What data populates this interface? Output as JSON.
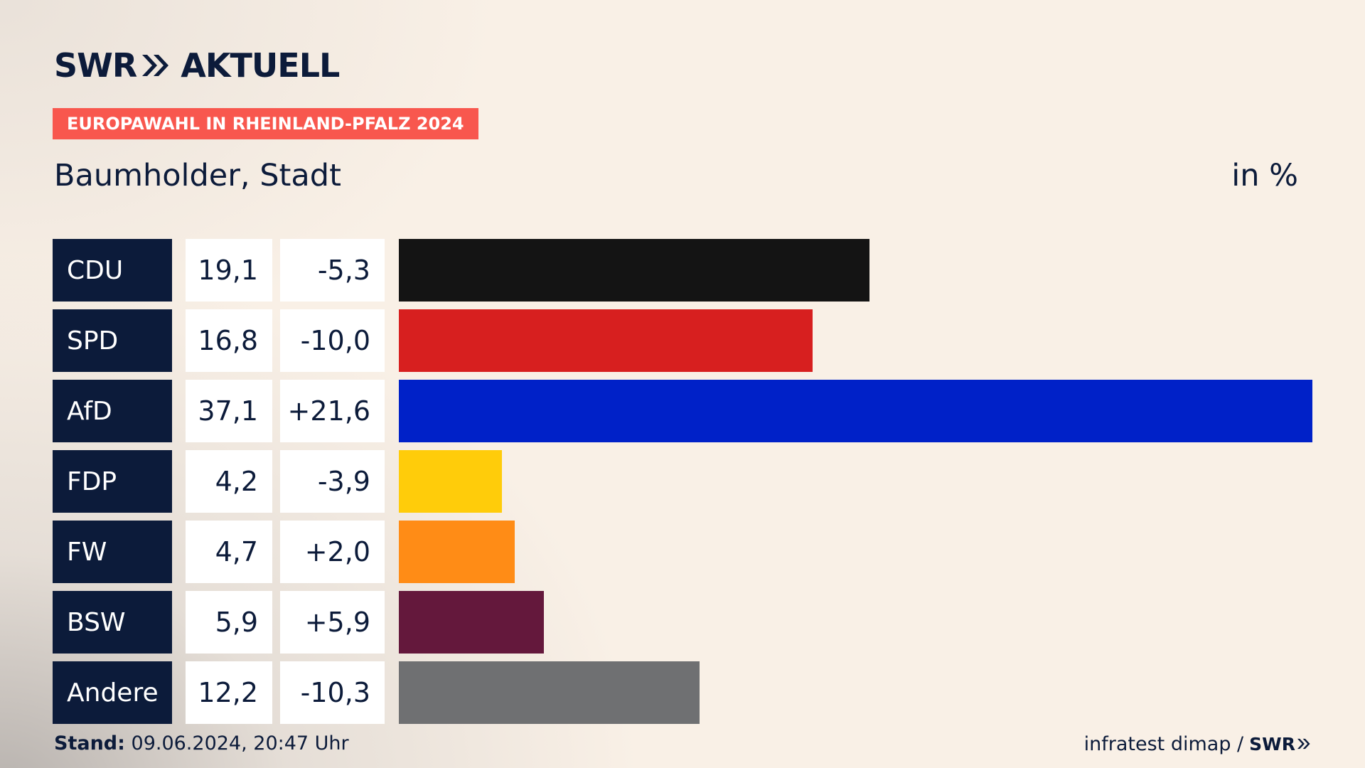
{
  "header": {
    "logo_swr": "SWR",
    "logo_aktuell": "AKTUELL",
    "tag": "EUROPAWAHL IN RHEINLAND-PFALZ 2024",
    "place": "Baumholder, Stadt",
    "unit": "in %"
  },
  "footer": {
    "stand_label": "Stand:",
    "stand_value": "09.06.2024, 20:47 Uhr",
    "source": "infratest dimap /",
    "source_logo": "SWR"
  },
  "colors": {
    "navy": "#0c1b3a",
    "tag_red": "#f8574e"
  },
  "chart_data": {
    "type": "bar",
    "title": "Baumholder, Stadt",
    "unit": "in %",
    "categories": [
      "CDU",
      "SPD",
      "AfD",
      "FDP",
      "FW",
      "BSW",
      "Andere"
    ],
    "series": [
      {
        "values": [
          19.1,
          16.8,
          37.1,
          4.2,
          4.7,
          5.9,
          12.2
        ]
      }
    ],
    "value_labels": [
      "19,1",
      "16,8",
      "37,1",
      "4,2",
      "4,7",
      "5,9",
      "12,2"
    ],
    "diff_labels": [
      "-5,3",
      "-10,0",
      "+21,6",
      "-3,9",
      "+2,0",
      "+5,9",
      "-10,3"
    ],
    "diffs": [
      -5.3,
      -10.0,
      21.6,
      -3.9,
      2.0,
      5.9,
      -10.3
    ],
    "bar_colors": [
      "#141414",
      "#d71f1f",
      "#0021c8",
      "#ffcc0a",
      "#ff8c16",
      "#64183c",
      "#6f7072"
    ],
    "xlim": [
      0,
      37.1
    ],
    "orientation": "horizontal",
    "grid": false
  }
}
